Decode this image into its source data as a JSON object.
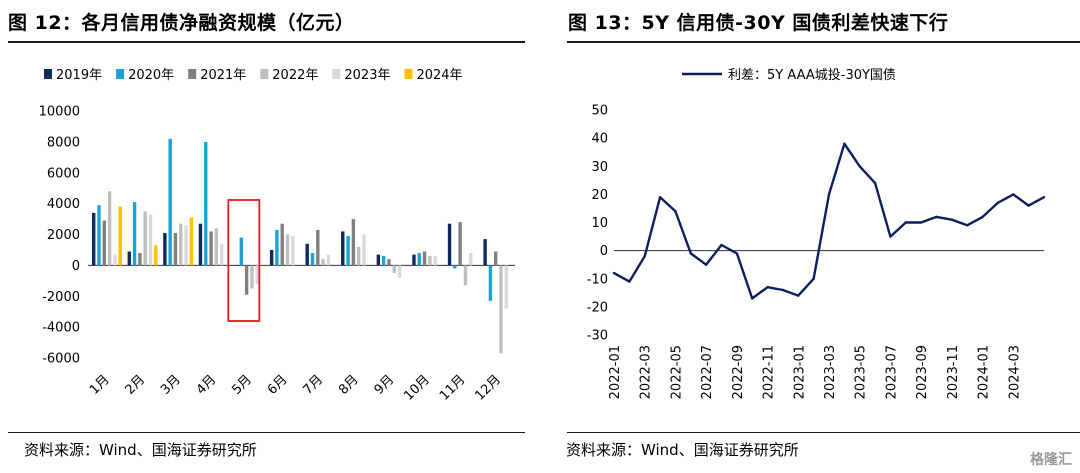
{
  "left": {
    "title": "图 12：各月信用债净融资规模（亿元）",
    "source": "资料来源：Wind、国海证券研究所",
    "chart_data": {
      "type": "bar",
      "categories": [
        "1月",
        "2月",
        "3月",
        "4月",
        "5月",
        "6月",
        "7月",
        "8月",
        "9月",
        "10月",
        "11月",
        "12月"
      ],
      "series": [
        {
          "name": "2019年",
          "color": "#0d2a5c",
          "values": [
            3400,
            900,
            2100,
            2700,
            0,
            1000,
            1400,
            2200,
            700,
            700,
            2700,
            1700
          ]
        },
        {
          "name": "2020年",
          "color": "#1ba3d8",
          "values": [
            3900,
            4100,
            8200,
            8000,
            1800,
            2300,
            800,
            1900,
            600,
            800,
            -200,
            -2300
          ]
        },
        {
          "name": "2021年",
          "color": "#7f7f7f",
          "values": [
            2900,
            800,
            2100,
            2200,
            -1900,
            2700,
            2300,
            3000,
            400,
            900,
            2800,
            900
          ]
        },
        {
          "name": "2022年",
          "color": "#bfbfbf",
          "values": [
            4800,
            3500,
            2700,
            2400,
            -1500,
            2000,
            400,
            1200,
            -500,
            600,
            -1300,
            -5700
          ]
        },
        {
          "name": "2023年",
          "color": "#d9d9d9",
          "values": [
            700,
            3300,
            2600,
            1400,
            -1200,
            1900,
            700,
            2000,
            -800,
            600,
            800,
            -2800
          ]
        },
        {
          "name": "2024年",
          "color": "#ffc000",
          "values": [
            3800,
            1300,
            3100,
            null,
            null,
            null,
            null,
            null,
            null,
            null,
            null,
            null
          ]
        }
      ],
      "ylim": [
        -6000,
        10000
      ],
      "yticks": [
        "10000",
        "8000",
        "6000",
        "4000",
        "2000",
        "0",
        "-2000",
        "-4000",
        "-6000"
      ],
      "highlight_category": "5月",
      "legend_position": "top"
    }
  },
  "right": {
    "title": "图 13：5Y 信用债-30Y 国债利差快速下行",
    "source": "资料来源：Wind、国海证券研究所",
    "chart_data": {
      "type": "line",
      "series": [
        {
          "name": "利差：5Y AAA城投-30Y国债",
          "color": "#0d1f5e",
          "x": [
            "2022-01",
            "2022-02",
            "2022-03",
            "2022-04",
            "2022-05",
            "2022-06",
            "2022-07",
            "2022-08",
            "2022-09",
            "2022-10",
            "2022-11",
            "2022-12",
            "2023-01",
            "2023-02",
            "2023-03",
            "2023-04",
            "2023-05",
            "2023-06",
            "2023-07",
            "2023-08",
            "2023-09",
            "2023-10",
            "2023-11",
            "2023-12",
            "2024-01",
            "2024-02",
            "2024-03",
            "2024-04",
            "2024-05"
          ],
          "values": [
            -8,
            -11,
            -2,
            19,
            14,
            -1,
            -5,
            2,
            -1,
            -17,
            -13,
            -14,
            -16,
            -10,
            20,
            38,
            30,
            24,
            5,
            10,
            10,
            12,
            11,
            9,
            12,
            17,
            20,
            16,
            19
          ]
        }
      ],
      "ylim": [
        -30,
        50
      ],
      "yticks": [
        "50",
        "40",
        "30",
        "20",
        "10",
        "0",
        "-10",
        "-20",
        "-30"
      ],
      "xticks": [
        "2022-01",
        "2022-03",
        "2022-05",
        "2022-07",
        "2022-09",
        "2022-11",
        "2023-01",
        "2023-03",
        "2023-05",
        "2023-07",
        "2023-09",
        "2023-11",
        "2024-01",
        "2024-03"
      ],
      "legend_position": "top"
    }
  },
  "watermark": "格隆汇"
}
